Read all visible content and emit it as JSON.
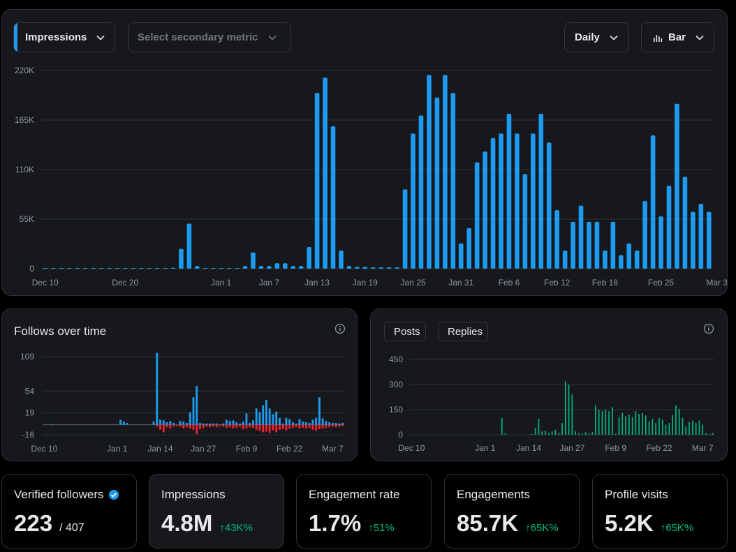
{
  "controls": {
    "primary_metric": "Impressions",
    "secondary_metric_placeholder": "Select secondary metric",
    "period": "Daily",
    "chart_type": "Bar"
  },
  "colors": {
    "blue": "#1d9bf0",
    "green": "#00ba7c",
    "red": "#f4212e",
    "grid": "#2f3336",
    "axis_text": "#8b98a5"
  },
  "icons": {
    "chevron": "chevron-down-icon",
    "bar_chart": "bar-chart-icon",
    "info": "info-icon",
    "verified": "verified-badge-icon"
  },
  "follows": {
    "title": "Follows over time"
  },
  "replies": {
    "legend": [
      "Posts",
      "Replies"
    ]
  },
  "stats": [
    {
      "label": "Verified followers",
      "value": "223",
      "sub": "/ 407",
      "delta": ""
    },
    {
      "label": "Impressions",
      "value": "4.8M",
      "sub": "",
      "delta": "↑43K%"
    },
    {
      "label": "Engagement rate",
      "value": "1.7%",
      "sub": "",
      "delta": "↑51%"
    },
    {
      "label": "Engagements",
      "value": "85.7K",
      "sub": "",
      "delta": "↑65K%"
    },
    {
      "label": "Profile visits",
      "value": "5.2K",
      "sub": "",
      "delta": "↑65K%"
    }
  ],
  "chart_data": [
    {
      "name": "impressions",
      "type": "bar",
      "ylim": [
        0,
        220000
      ],
      "yticks": [
        0,
        55000,
        110000,
        165000,
        220000
      ],
      "ytick_labels": [
        "0",
        "55K",
        "110K",
        "165K",
        "220K"
      ],
      "xtick_labels": [
        "Dec 10",
        "Dec 20",
        "Jan 1",
        "Jan 7",
        "Jan 13",
        "Jan 19",
        "Jan 25",
        "Jan 31",
        "Feb 6",
        "Feb 12",
        "Feb 18",
        "Feb 25",
        "Mar 3"
      ],
      "xtick_index": [
        0,
        10,
        22,
        28,
        34,
        40,
        46,
        52,
        58,
        64,
        70,
        77,
        84
      ],
      "values": [
        500,
        500,
        500,
        500,
        500,
        500,
        500,
        500,
        500,
        500,
        500,
        500,
        500,
        500,
        500,
        500,
        1000,
        22000,
        50000,
        3000,
        800,
        800,
        800,
        800,
        800,
        3000,
        18000,
        3000,
        3000,
        6000,
        6000,
        3000,
        3000,
        24000,
        195000,
        212000,
        158000,
        20000,
        3000,
        2000,
        2000,
        1500,
        1500,
        1500,
        1500,
        88000,
        150000,
        170000,
        215000,
        190000,
        215000,
        195000,
        28000,
        45000,
        118000,
        130000,
        145000,
        150000,
        172000,
        150000,
        105000,
        150000,
        172000,
        140000,
        65000,
        20000,
        52000,
        70000,
        52000,
        52000,
        20000,
        52000,
        15000,
        28000,
        20000,
        75000,
        148000,
        58000,
        92000,
        183000,
        102000,
        63000,
        72000,
        63000
      ]
    },
    {
      "name": "follows",
      "type": "bar",
      "ylim": [
        -16,
        109
      ],
      "ytick_labels": [
        "109",
        "54",
        "19",
        "-16"
      ],
      "yticks": [
        109,
        54,
        19,
        -16
      ],
      "xtick_labels": [
        "Dec 10",
        "Jan 1",
        "Jan 14",
        "Jan 27",
        "Feb 9",
        "Feb 22",
        "Mar 7"
      ],
      "xtick_index": [
        0,
        22,
        35,
        48,
        61,
        74,
        87
      ],
      "series": [
        {
          "name": "follows",
          "values": [
            0,
            0,
            1,
            0,
            0,
            0,
            0,
            0,
            0,
            0,
            0,
            0,
            0,
            0,
            0,
            0,
            0,
            0,
            0,
            0,
            0,
            0,
            0,
            8,
            5,
            3,
            0,
            0,
            0,
            0,
            0,
            0,
            0,
            5,
            115,
            8,
            7,
            4,
            6,
            3,
            0,
            6,
            5,
            3,
            20,
            44,
            62,
            3,
            2,
            2,
            2,
            2,
            2,
            0,
            2,
            8,
            6,
            7,
            4,
            2,
            5,
            18,
            3,
            7,
            26,
            20,
            31,
            40,
            26,
            17,
            21,
            11,
            2,
            11,
            9,
            4,
            2,
            9,
            5,
            4,
            3,
            8,
            11,
            44,
            10,
            6,
            4,
            3,
            3,
            2,
            3
          ]
        },
        {
          "name": "unfollows",
          "values": [
            0,
            0,
            0,
            0,
            0,
            0,
            0,
            0,
            0,
            0,
            0,
            0,
            0,
            0,
            0,
            0,
            0,
            0,
            0,
            0,
            0,
            0,
            0,
            0,
            0,
            0,
            0,
            0,
            0,
            0,
            0,
            0,
            0,
            0,
            -3,
            -8,
            -12,
            -4,
            -6,
            -3,
            -2,
            -3,
            -6,
            -4,
            -6,
            -8,
            -15,
            -7,
            -5,
            -3,
            -4,
            -3,
            -4,
            -2,
            -3,
            -5,
            -4,
            -6,
            -5,
            -3,
            -7,
            -6,
            -4,
            -5,
            -8,
            -10,
            -12,
            -11,
            -13,
            -9,
            -12,
            -8,
            -7,
            -9,
            -6,
            -5,
            -4,
            -6,
            -5,
            -6,
            -5,
            -8,
            -9,
            -7,
            -6,
            -5,
            -4,
            -3,
            -4,
            -3,
            -2
          ]
        }
      ]
    },
    {
      "name": "posts-replies",
      "type": "bar",
      "ylim": [
        0,
        450
      ],
      "yticks": [
        0,
        150,
        300,
        450
      ],
      "ytick_labels": [
        "0",
        "150",
        "300",
        "450"
      ],
      "xtick_labels": [
        "Dec 10",
        "Jan 1",
        "Jan 14",
        "Jan 27",
        "Feb 9",
        "Feb 22",
        "Mar 7"
      ],
      "xtick_index": [
        0,
        22,
        35,
        48,
        61,
        74,
        87
      ],
      "series": [
        {
          "name": "Replies",
          "values": [
            0,
            0,
            0,
            0,
            0,
            0,
            0,
            0,
            0,
            0,
            0,
            0,
            0,
            0,
            0,
            0,
            0,
            0,
            0,
            0,
            0,
            0,
            0,
            0,
            0,
            0,
            0,
            100,
            10,
            0,
            0,
            0,
            0,
            0,
            0,
            0,
            5,
            40,
            95,
            20,
            25,
            10,
            20,
            30,
            10,
            70,
            320,
            300,
            240,
            20,
            10,
            5,
            15,
            8,
            15,
            175,
            150,
            140,
            150,
            140,
            165,
            5,
            105,
            130,
            110,
            120,
            105,
            140,
            125,
            130,
            115,
            80,
            95,
            70,
            100,
            90,
            60,
            70,
            120,
            175,
            155,
            100,
            50,
            75,
            85,
            70,
            85,
            60,
            10,
            5,
            10
          ]
        },
        {
          "name": "Posts",
          "values": [
            0,
            0,
            0,
            0,
            0,
            0,
            0,
            0,
            0,
            0,
            0,
            0,
            0,
            0,
            0,
            0,
            0,
            0,
            0,
            0,
            0,
            0,
            0,
            0,
            0,
            0,
            0,
            0,
            0,
            0,
            0,
            0,
            0,
            0,
            0,
            0,
            0,
            0,
            0,
            0,
            0,
            0,
            0,
            0,
            0,
            0,
            0,
            0,
            0,
            0,
            0,
            0,
            0,
            0,
            0,
            0,
            0,
            0,
            0,
            0,
            0,
            0,
            0,
            0,
            0,
            0,
            0,
            0,
            0,
            0,
            0,
            0,
            0,
            0,
            0,
            0,
            0,
            0,
            0,
            0,
            0,
            0,
            0,
            0,
            0,
            0,
            0,
            0,
            0,
            0,
            0
          ]
        }
      ]
    }
  ]
}
